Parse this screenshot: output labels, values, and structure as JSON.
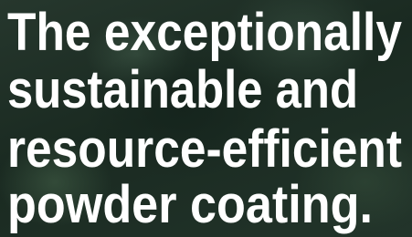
{
  "hero": {
    "heading_lines": [
      "The exceptionally",
      "sustainable and",
      "resource-efficient",
      "powder coating."
    ]
  }
}
